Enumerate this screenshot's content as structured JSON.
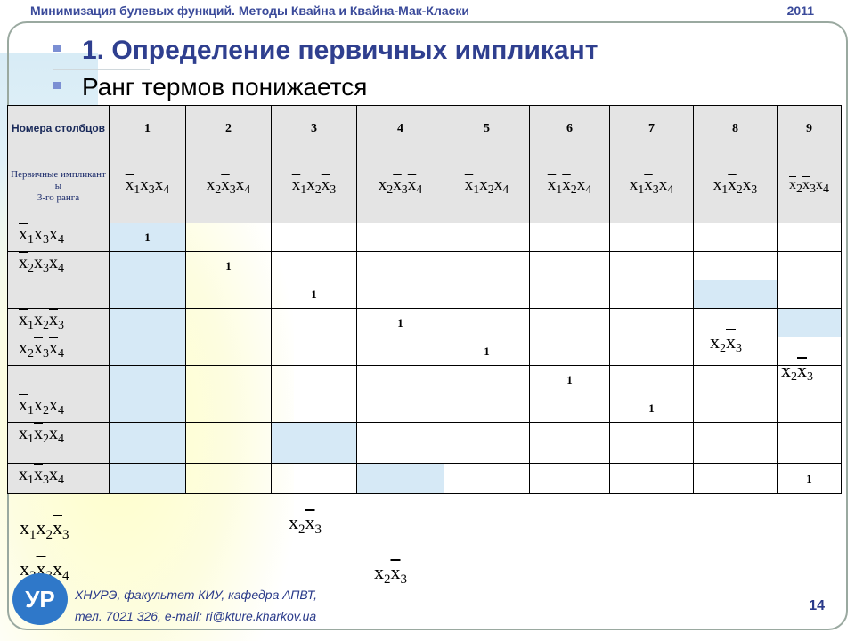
{
  "header": {
    "title": "Минимизация булевых функций. Методы Квайна и Квайна-Мак-Класки",
    "year": "2011"
  },
  "slide": {
    "heading": "1. Определение первичных импликант",
    "subheading": "Ранг термов понижается"
  },
  "table": {
    "corner_label": "Номера столбцов",
    "row_header_label_1": "Первичные импликант ы",
    "row_header_label_2": "3-го ранга",
    "column_numbers": [
      "1",
      "2",
      "3",
      "4",
      "5",
      "6",
      "7",
      "8",
      "9"
    ],
    "column_terms": [
      "x1x3x4",
      "x2x3x4",
      "x1x2x3",
      "x2x3x4",
      "x1x2x4",
      "x1x2x4",
      "x1x3x4",
      "x1x2x3",
      "x2x3x4"
    ],
    "row_terms": [
      "x1x3x4",
      "x2x3x4",
      "",
      "x1x2x3",
      "x2x3x4",
      "",
      "x1x2x4",
      "x1x2x4",
      "x1x3x4"
    ],
    "cell_value": "1",
    "inner_annotations": [
      "x2x3",
      "x2x3"
    ]
  },
  "free_terms": [
    "x1x2x3",
    "x2x3",
    "x2x3x4",
    "x2x3"
  ],
  "footer": {
    "line1": "ХНУРЭ, факультет КИУ, кафедра АПВТ,",
    "line2": "тел. 7021 326, e-mail: ri@kture.kharkov.ua",
    "page": "14"
  },
  "logo_text": "УР"
}
